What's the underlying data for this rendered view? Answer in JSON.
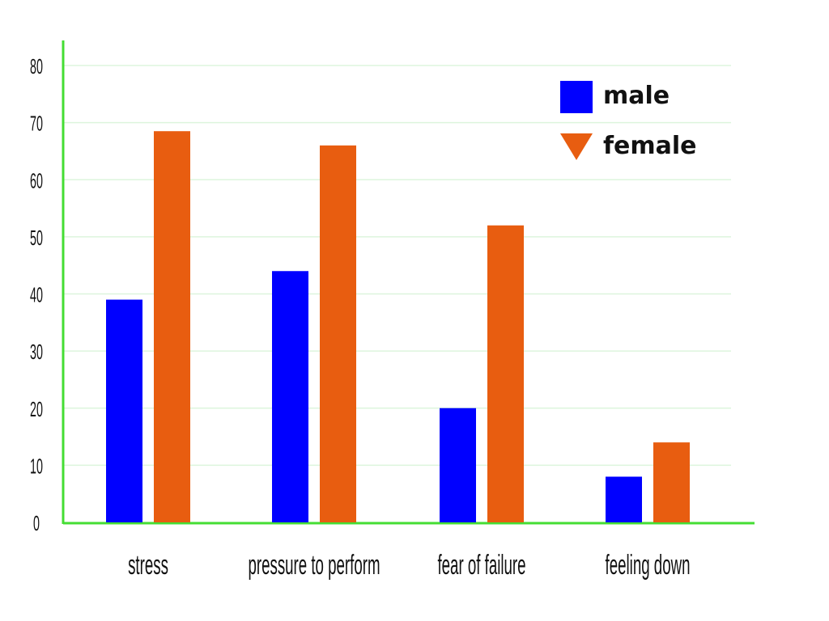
{
  "chart_data": {
    "type": "bar",
    "title": "",
    "xlabel": "",
    "ylabel": "",
    "categories": [
      "stress",
      "pressure to perform",
      "fear of failure",
      "feeling down"
    ],
    "series": [
      {
        "name": "male",
        "color": "#0000FF",
        "marker": "square",
        "values": [
          39,
          44,
          20,
          8
        ]
      },
      {
        "name": "female",
        "color": "#E85D10",
        "marker": "triangle-down",
        "values": [
          68.5,
          66,
          52,
          14
        ]
      }
    ],
    "ylim": [
      0,
      80
    ],
    "yticks": [
      0,
      10,
      20,
      30,
      40,
      50,
      60,
      70,
      80
    ],
    "grid": true,
    "axis_color": "#44DD33",
    "grid_color": "#DDF5DD",
    "legend_position": "top-right"
  }
}
